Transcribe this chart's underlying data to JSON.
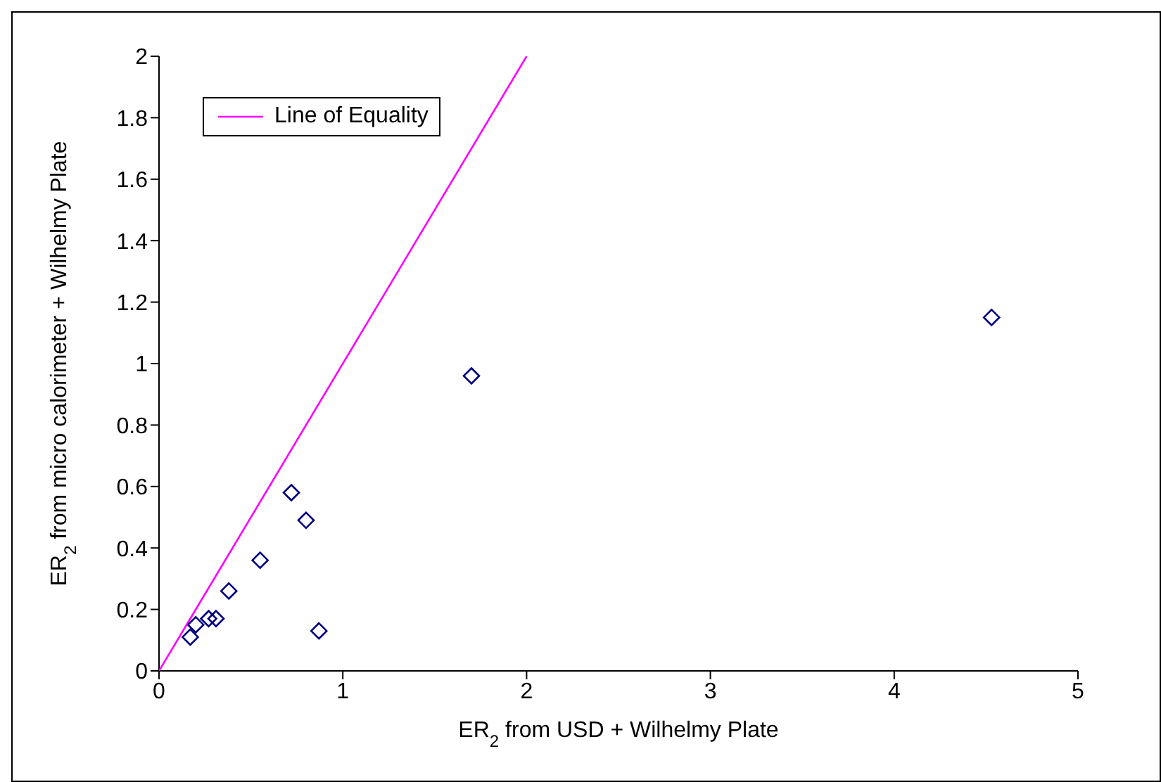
{
  "chart_data": {
    "type": "scatter",
    "xlabel": "ER$_{2}$ from USD + Wilhelmy Plate",
    "ylabel": "ER$_{2}$ from micro calorimeter + Wilhelmy Plate",
    "xlim": [
      0,
      5
    ],
    "xticks": [
      0,
      1,
      2,
      3,
      4,
      5
    ],
    "ylim": [
      0,
      2
    ],
    "yticks": [
      0,
      0.2,
      0.4,
      0.6,
      0.8,
      1,
      1.2,
      1.4,
      1.6,
      1.8,
      2
    ],
    "legend": "top left",
    "marker": "diamond",
    "series": [
      {
        "name": "Line of Equality",
        "type": "line",
        "color": "#ff00ff",
        "marker": "none",
        "x": [
          0,
          2
        ],
        "values": [
          0,
          2
        ]
      },
      {
        "color": "#000080",
        "x": [
          0.17,
          0.2,
          0.27,
          0.31,
          0.38,
          0.55,
          0.72,
          0.8,
          0.87,
          1.7,
          4.53
        ],
        "values": [
          0.11,
          0.15,
          0.17,
          0.17,
          0.26,
          0.36,
          0.58,
          0.49,
          0.13,
          0.96,
          1.15
        ]
      }
    ]
  }
}
